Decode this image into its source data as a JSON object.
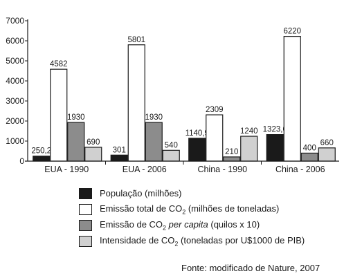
{
  "chart_data": {
    "type": "bar",
    "categories": [
      "EUA - 1990",
      "EUA - 2006",
      "China - 1990",
      "China - 2006"
    ],
    "series": [
      {
        "name": "População (milhões)",
        "color": "#1a1a1a",
        "values": [
          250.2,
          301,
          1140.9,
          1323.6
        ],
        "labels": [
          "250,2",
          "301",
          "1140,9",
          "1323,6"
        ]
      },
      {
        "name": "Emissão total de CO2 (milhões de toneladas)",
        "color": "#ffffff",
        "values": [
          4582,
          5801,
          2309,
          6220
        ],
        "labels": [
          "4582",
          "5801",
          "2309",
          "6220"
        ]
      },
      {
        "name": "Emissão de CO2 per capita (quilos x 10)",
        "color": "#8c8c8c",
        "values": [
          1930,
          1930,
          210,
          400
        ],
        "labels": [
          "1930",
          "1930",
          "210",
          "400"
        ]
      },
      {
        "name": "Intensidade de CO2 (toneladas por U$1000 de PIB)",
        "color": "#d0d0d0",
        "values": [
          690,
          540,
          1240,
          660
        ],
        "labels": [
          "690",
          "540",
          "1240",
          "660"
        ]
      }
    ],
    "ylim": [
      0,
      7000
    ],
    "yticks": [
      0,
      1000,
      2000,
      3000,
      4000,
      5000,
      6000,
      7000
    ],
    "grid": false,
    "legend_position": "bottom"
  },
  "legend": {
    "pop": {
      "text": "População (milhões)"
    },
    "total": {
      "pre": "Emissão total de CO",
      "sub": "2",
      "post": " (milhões de toneladas)"
    },
    "percapita": {
      "pre": "Emissão de CO",
      "sub": "2",
      "ital": " per capita",
      "post": " (quilos x 10)"
    },
    "intens": {
      "pre": "Intensidade de CO",
      "sub": "2",
      "post": " (toneladas por U$1000 de PIB)"
    }
  },
  "source": "Fonte: modificado de Nature, 2007"
}
